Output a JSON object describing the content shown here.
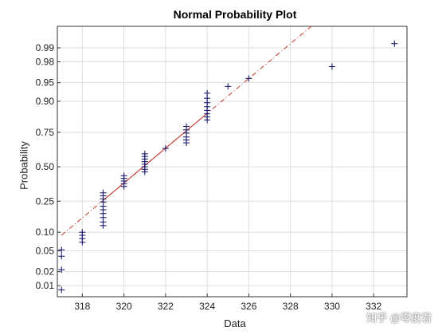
{
  "chart_data": {
    "type": "scatter",
    "title": "Normal Probability Plot",
    "xlabel": "Data",
    "ylabel": "Probability",
    "xlim": [
      316.8,
      333.6
    ],
    "xticks": [
      318,
      320,
      322,
      324,
      326,
      328,
      330,
      332
    ],
    "yticks": [
      0.01,
      0.02,
      0.05,
      0.1,
      0.25,
      0.5,
      0.75,
      0.9,
      0.95,
      0.98,
      0.99
    ],
    "ytick_labels": [
      "0.01",
      "0.02",
      "0.05",
      "0.10",
      "0.25",
      "0.50",
      "0.75",
      "0.90",
      "0.95",
      "0.98",
      "0.99"
    ],
    "ylim": [
      0.0055,
      0.997
    ],
    "grid": true,
    "marker": "+",
    "colors": {
      "points": "#1f1f6e",
      "reference_line": "#c0392b",
      "grid": "#dddddd",
      "axes": "#333333"
    },
    "points": [
      {
        "x": 317,
        "y": 0.008
      },
      {
        "x": 317,
        "y": 0.022
      },
      {
        "x": 317,
        "y": 0.04
      },
      {
        "x": 317,
        "y": 0.052
      },
      {
        "x": 318,
        "y": 0.07
      },
      {
        "x": 318,
        "y": 0.08
      },
      {
        "x": 318,
        "y": 0.09
      },
      {
        "x": 318,
        "y": 0.1
      },
      {
        "x": 319,
        "y": 0.125
      },
      {
        "x": 319,
        "y": 0.14
      },
      {
        "x": 319,
        "y": 0.16
      },
      {
        "x": 319,
        "y": 0.18
      },
      {
        "x": 319,
        "y": 0.2
      },
      {
        "x": 319,
        "y": 0.22
      },
      {
        "x": 319,
        "y": 0.245
      },
      {
        "x": 319,
        "y": 0.265
      },
      {
        "x": 319,
        "y": 0.285
      },
      {
        "x": 319,
        "y": 0.305
      },
      {
        "x": 320,
        "y": 0.35
      },
      {
        "x": 320,
        "y": 0.37
      },
      {
        "x": 320,
        "y": 0.39
      },
      {
        "x": 320,
        "y": 0.41
      },
      {
        "x": 320,
        "y": 0.43
      },
      {
        "x": 321,
        "y": 0.46
      },
      {
        "x": 321,
        "y": 0.48
      },
      {
        "x": 321,
        "y": 0.5
      },
      {
        "x": 321,
        "y": 0.52
      },
      {
        "x": 321,
        "y": 0.54
      },
      {
        "x": 321,
        "y": 0.56
      },
      {
        "x": 321,
        "y": 0.58
      },
      {
        "x": 321,
        "y": 0.6
      },
      {
        "x": 322,
        "y": 0.64
      },
      {
        "x": 323,
        "y": 0.68
      },
      {
        "x": 323,
        "y": 0.7
      },
      {
        "x": 323,
        "y": 0.72
      },
      {
        "x": 323,
        "y": 0.745
      },
      {
        "x": 323,
        "y": 0.765
      },
      {
        "x": 323,
        "y": 0.785
      },
      {
        "x": 324,
        "y": 0.82
      },
      {
        "x": 324,
        "y": 0.835
      },
      {
        "x": 324,
        "y": 0.85
      },
      {
        "x": 324,
        "y": 0.865
      },
      {
        "x": 324,
        "y": 0.88
      },
      {
        "x": 324,
        "y": 0.895
      },
      {
        "x": 324,
        "y": 0.91
      },
      {
        "x": 324,
        "y": 0.925
      },
      {
        "x": 325,
        "y": 0.942
      },
      {
        "x": 326,
        "y": 0.958
      },
      {
        "x": 330,
        "y": 0.975
      },
      {
        "x": 333,
        "y": 0.992
      }
    ],
    "reference_line": {
      "x": [
        317,
        329
      ],
      "y": [
        0.09,
        0.997
      ]
    }
  },
  "watermark": "知乎 @零度君"
}
